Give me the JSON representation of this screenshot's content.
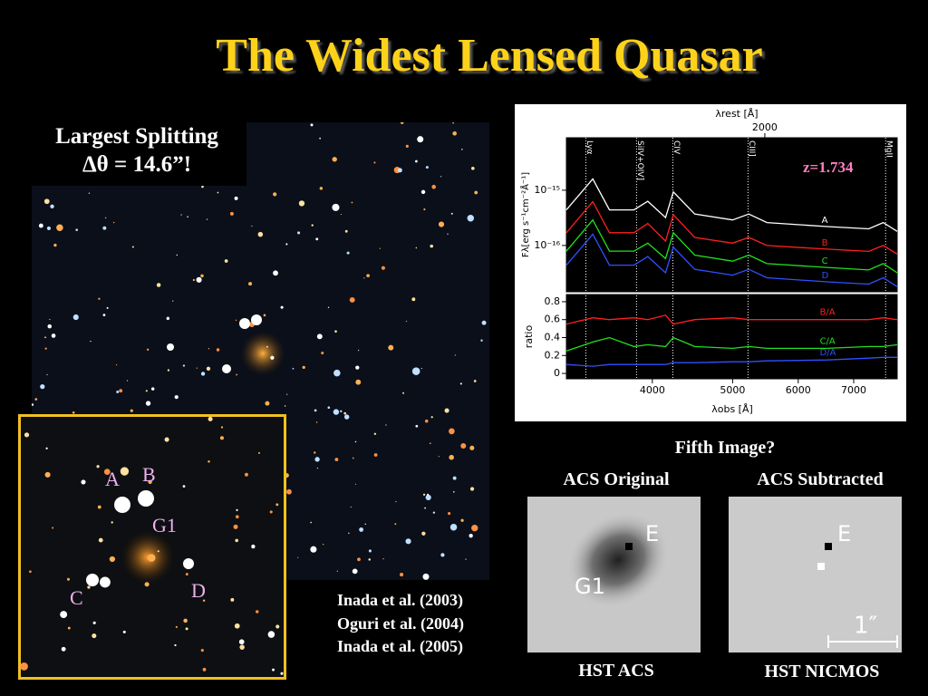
{
  "title": "The Widest Lensed Quasar",
  "splitting": {
    "line1": "Largest Splitting",
    "line2": "Δθ = 14.6”!"
  },
  "inset_labels": [
    "A",
    "B",
    "G1",
    "C",
    "D"
  ],
  "citations": [
    "Inada et al. (2003)",
    "Oguri et al. (2004)",
    "Inada et al. (2005)"
  ],
  "fifth": {
    "heading": "Fifth Image?",
    "left_title": "ACS Original",
    "right_title": "ACS Subtracted",
    "left_marks": [
      "E",
      "G1"
    ],
    "right_marks": [
      "E",
      "1″"
    ],
    "left_caption": "HST ACS",
    "right_caption": "HST NICMOS"
  },
  "spectrum": {
    "redshift": {
      "value": 1.734,
      "label": "z=1.734"
    },
    "xlabel": "λobs [Å]",
    "toplabel": "λrest [Å]",
    "ylabel": "Fλ[erg s⁻¹cm⁻²Å⁻¹]",
    "ratio_label": "ratio",
    "xlim": [
      3150,
      7900
    ],
    "xticks": [
      4000,
      5000,
      6000,
      7000
    ],
    "toptick": 2000,
    "log_x": true,
    "ylim": [
      1.45e-17,
      8.9e-15
    ],
    "yticks": [
      {
        "value": 1e-15,
        "label": "10⁻¹⁵"
      },
      {
        "value": 1e-16,
        "label": "10⁻¹⁶"
      }
    ],
    "log_y": true,
    "ratio_ylim": [
      -0.06,
      0.88
    ],
    "ratio_yticks": [
      0,
      0.2,
      0.4,
      0.6,
      0.8
    ],
    "lines": [
      {
        "label": "Lyα",
        "x": 3325
      },
      {
        "label": "SiIV+OIV]",
        "x": 3828
      },
      {
        "label": "CIV",
        "x": 4235
      },
      {
        "label": "CIII]",
        "x": 5219
      },
      {
        "label": "MgII",
        "x": 7650
      }
    ],
    "x": [
      3150,
      3390,
      3550,
      3800,
      3950,
      4150,
      4240,
      4500,
      5000,
      5230,
      5500,
      6500,
      7300,
      7600,
      7900
    ],
    "series": [
      {
        "name": "A",
        "color": "#ffffff",
        "values": [
          4.4e-16,
          1.6e-15,
          4.4e-16,
          4.4e-16,
          6.3e-16,
          3.2e-16,
          9.3e-16,
          3.7e-16,
          2.9e-16,
          3.7e-16,
          2.6e-16,
          2.2e-16,
          2e-16,
          2.6e-16,
          1.8e-16
        ]
      },
      {
        "name": "B",
        "color": "#ff2020",
        "values": [
          1.7e-16,
          6.2e-16,
          1.7e-16,
          1.7e-16,
          2.5e-16,
          1.2e-16,
          3.6e-16,
          1.4e-16,
          1.1e-16,
          1.4e-16,
          1e-16,
          8.6e-17,
          7.8e-17,
          1e-16,
          7e-17
        ]
      },
      {
        "name": "C",
        "color": "#20e020",
        "values": [
          7.9e-17,
          2.9e-16,
          7.9e-17,
          7.9e-17,
          1.1e-16,
          5.8e-17,
          1.7e-16,
          6.7e-17,
          5.2e-17,
          6.7e-17,
          4.7e-17,
          4e-17,
          3.6e-17,
          4.7e-17,
          3.2e-17
        ]
      },
      {
        "name": "D",
        "color": "#3050ff",
        "values": [
          4.4e-17,
          1.6e-16,
          4.4e-17,
          4.4e-17,
          6.3e-17,
          3.2e-17,
          9.3e-17,
          3.7e-17,
          2.9e-17,
          3.7e-17,
          2.6e-17,
          2.2e-17,
          2e-17,
          2.6e-17,
          1.8e-17
        ]
      }
    ],
    "ratios": [
      {
        "name": "B/A",
        "color": "#ff2020",
        "values": [
          0.55,
          0.62,
          0.6,
          0.62,
          0.6,
          0.65,
          0.55,
          0.6,
          0.62,
          0.6,
          0.6,
          0.6,
          0.6,
          0.62,
          0.6
        ]
      },
      {
        "name": "C/A",
        "color": "#20e020",
        "values": [
          0.25,
          0.35,
          0.4,
          0.3,
          0.32,
          0.3,
          0.4,
          0.3,
          0.28,
          0.3,
          0.28,
          0.28,
          0.3,
          0.3,
          0.32
        ]
      },
      {
        "name": "D/A",
        "color": "#3050ff",
        "values": [
          0.1,
          0.08,
          0.1,
          0.1,
          0.1,
          0.1,
          0.12,
          0.12,
          0.13,
          0.13,
          0.14,
          0.15,
          0.17,
          0.18,
          0.18
        ]
      }
    ]
  }
}
